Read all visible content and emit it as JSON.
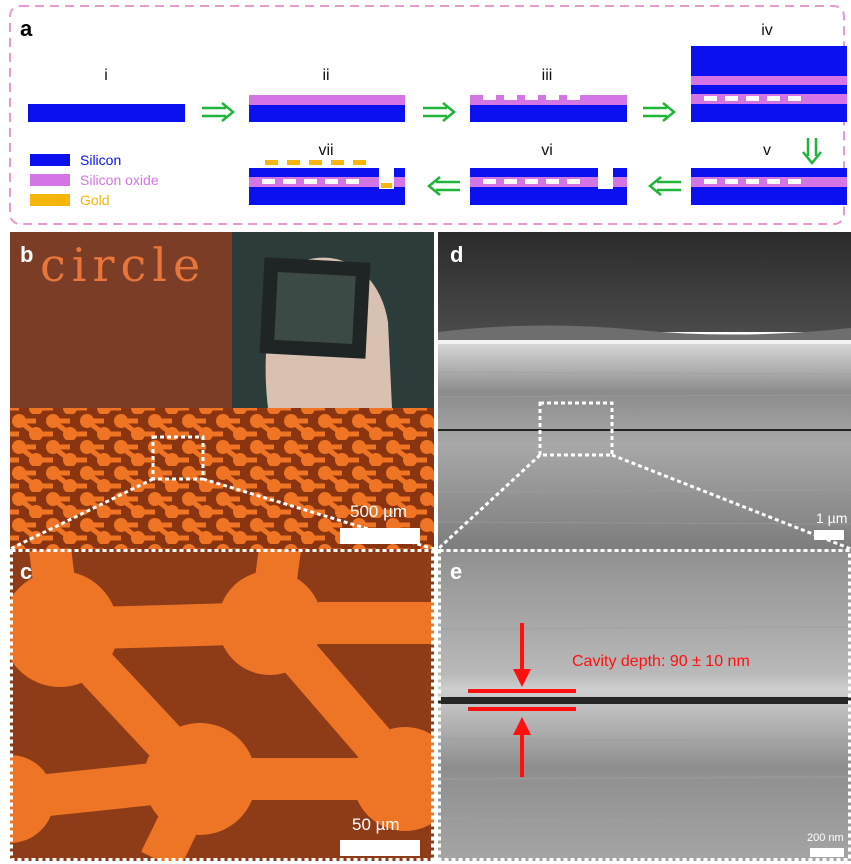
{
  "panel_a": {
    "letter": "a",
    "steps": [
      "i",
      "ii",
      "iii",
      "iv",
      "v",
      "vi",
      "vii"
    ],
    "legend": [
      {
        "label": "Silicon",
        "color": "#0a10f0"
      },
      {
        "label": "Silicon oxide",
        "color": "#d475e6"
      },
      {
        "label": "Gold",
        "color": "#f8b60c"
      }
    ],
    "arrow_color": "#1eb53a",
    "border_color": "#e79ad2"
  },
  "panel_b": {
    "letter": "b",
    "watermark": "circle",
    "scale_label": "500 µm"
  },
  "panel_c": {
    "letter": "c",
    "scale_label": "50 µm"
  },
  "panel_d": {
    "letter": "d",
    "scale_label": "1 µm"
  },
  "panel_e": {
    "letter": "e",
    "scale_label": "200 nm",
    "annotation": "Cavity depth: 90 ± 10 nm"
  }
}
